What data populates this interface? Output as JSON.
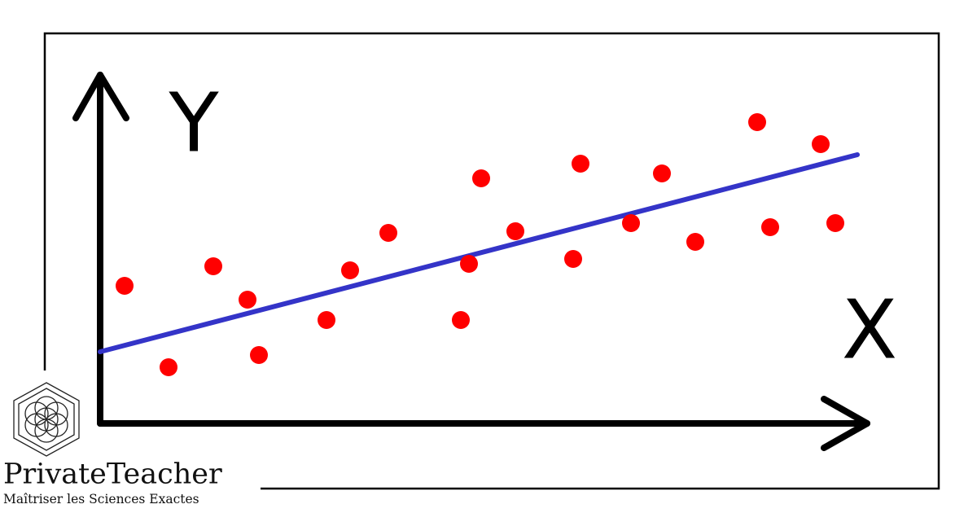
{
  "chart_data": {
    "type": "scatter",
    "x_label": "X",
    "y_label": "Y",
    "xlim": [
      0,
      942
    ],
    "ylim": [
      0,
      428
    ],
    "x": [
      30,
      84,
      139,
      181,
      195,
      278,
      307,
      354,
      443,
      453,
      468,
      510,
      581,
      590,
      652,
      690,
      731,
      807,
      823,
      885,
      903
    ],
    "values": [
      169,
      69,
      193,
      152,
      84,
      127,
      188,
      234,
      127,
      196,
      301,
      236,
      202,
      319,
      246,
      307,
      223,
      370,
      241,
      343,
      246
    ],
    "color": "#ff0000",
    "trend": {
      "x": [
        0,
        930
      ],
      "y": [
        88,
        330
      ],
      "color": "#3434c8"
    }
  },
  "logo": {
    "name": "PrivateTeacher",
    "tagline": "Maîtriser les Sciences Exactes"
  }
}
